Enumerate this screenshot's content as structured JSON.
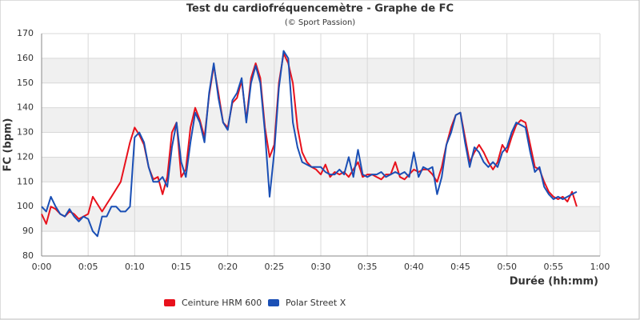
{
  "chart_data": {
    "type": "line",
    "title": "Test du cardiofréquencemètre - Graphe de FC",
    "subtitle": "(© Sport Passion)",
    "xlabel": "Durée (hh:mm)",
    "ylabel": "FC (bpm)",
    "x": [
      0,
      0.5,
      1,
      1.5,
      2,
      2.5,
      3,
      3.5,
      4,
      4.5,
      5,
      5.5,
      6,
      6.5,
      7,
      7.5,
      8,
      8.5,
      9,
      9.5,
      10,
      10.5,
      11,
      11.5,
      12,
      12.5,
      13,
      13.5,
      14,
      14.5,
      15,
      15.5,
      16,
      16.5,
      17,
      17.5,
      18,
      18.5,
      19,
      19.5,
      20,
      20.5,
      21,
      21.5,
      22,
      22.5,
      23,
      23.5,
      24,
      24.5,
      25,
      25.5,
      26,
      26.5,
      27,
      27.5,
      28,
      28.5,
      29,
      29.5,
      30,
      30.5,
      31,
      31.5,
      32,
      32.5,
      33,
      33.5,
      34,
      34.5,
      35,
      35.5,
      36,
      36.5,
      37,
      37.5,
      38,
      38.5,
      39,
      39.5,
      40,
      40.5,
      41,
      41.5,
      42,
      42.5,
      43,
      43.5,
      44,
      44.5,
      45,
      45.5,
      46,
      46.5,
      47,
      47.5,
      48,
      48.5,
      49,
      49.5,
      50,
      50.5,
      51,
      51.5,
      52,
      52.5,
      53,
      53.5,
      54,
      54.5,
      55,
      55.5,
      56,
      56.5,
      57,
      57.5
    ],
    "series": [
      {
        "name": "Ceinture HRM 600",
        "color": "#e8111c",
        "values": [
          97,
          93,
          100,
          99,
          97,
          96,
          98,
          97,
          95,
          96,
          97,
          104,
          101,
          98,
          101,
          104,
          107,
          110,
          118,
          126,
          132,
          129,
          125,
          116,
          111,
          112,
          105,
          112,
          130,
          134,
          112,
          115,
          132,
          140,
          135,
          128,
          145,
          157,
          146,
          134,
          132,
          142,
          144,
          151,
          135,
          152,
          158,
          152,
          132,
          120,
          125,
          150,
          162,
          158,
          150,
          132,
          122,
          118,
          116,
          115,
          113,
          117,
          112,
          114,
          113,
          114,
          112,
          115,
          118,
          112,
          113,
          113,
          112,
          111,
          113,
          113,
          118,
          112,
          111,
          113,
          115,
          114,
          115,
          115,
          113,
          110,
          116,
          125,
          132,
          137,
          138,
          128,
          118,
          122,
          125,
          122,
          118,
          115,
          118,
          125,
          122,
          128,
          133,
          135,
          134,
          125,
          116,
          115,
          110,
          106,
          104,
          103,
          104,
          102,
          106,
          100
        ]
      },
      {
        "name": "Polar Street X",
        "color": "#1a4fb5",
        "values": [
          100,
          98,
          104,
          100,
          97,
          96,
          99,
          96,
          94,
          96,
          95,
          90,
          88,
          96,
          96,
          100,
          100,
          98,
          98,
          100,
          128,
          130,
          126,
          116,
          110,
          110,
          112,
          108,
          124,
          134,
          118,
          112,
          126,
          138,
          134,
          126,
          146,
          158,
          144,
          134,
          131,
          143,
          146,
          152,
          134,
          150,
          157,
          150,
          130,
          104,
          122,
          148,
          163,
          160,
          134,
          124,
          118,
          117,
          116,
          116,
          116,
          114,
          113,
          113,
          115,
          113,
          120,
          112,
          123,
          113,
          112,
          113,
          113,
          114,
          112,
          113,
          114,
          113,
          114,
          112,
          122,
          112,
          116,
          115,
          116,
          105,
          112,
          125,
          130,
          137,
          138,
          126,
          116,
          124,
          122,
          118,
          116,
          118,
          116,
          122,
          124,
          130,
          134,
          133,
          132,
          122,
          114,
          116,
          108,
          105,
          103,
          104,
          103,
          104,
          105,
          106
        ]
      }
    ],
    "xlim": [
      0,
      60
    ],
    "xticks": [
      {
        "value": 0,
        "label": "0:00"
      },
      {
        "value": 5,
        "label": "0:05"
      },
      {
        "value": 10,
        "label": "0:10"
      },
      {
        "value": 15,
        "label": "0:15"
      },
      {
        "value": 20,
        "label": "0:20"
      },
      {
        "value": 25,
        "label": "0:25"
      },
      {
        "value": 30,
        "label": "0:30"
      },
      {
        "value": 35,
        "label": "0:35"
      },
      {
        "value": 40,
        "label": "0:40"
      },
      {
        "value": 45,
        "label": "0:45"
      },
      {
        "value": 50,
        "label": "0:50"
      },
      {
        "value": 55,
        "label": "0:55"
      },
      {
        "value": 60,
        "label": "1:00"
      }
    ],
    "ylim": [
      80,
      170
    ],
    "yticks": [
      80,
      90,
      100,
      110,
      120,
      130,
      140,
      150,
      160,
      170
    ],
    "grid": true,
    "bands": true,
    "legend": "bottom"
  }
}
